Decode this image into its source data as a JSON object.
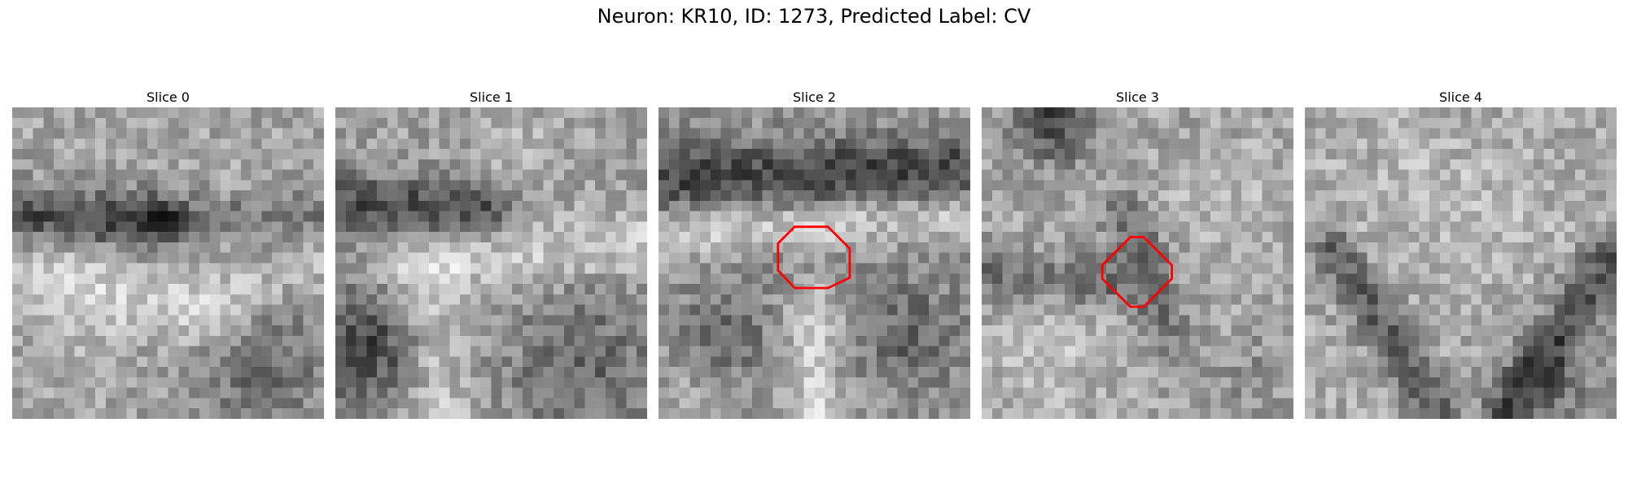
{
  "figure": {
    "title": "Neuron: KR10, ID: 1273, Predicted Label: CV"
  },
  "panels": [
    {
      "title": "Slice 0",
      "roi": false
    },
    {
      "title": "Slice 1",
      "roi": false
    },
    {
      "title": "Slice 2",
      "roi": true
    },
    {
      "title": "Slice 3",
      "roi": true
    },
    {
      "title": "Slice 4",
      "roi": false
    }
  ],
  "colors": {
    "roi_outline": "#ff0000",
    "colormap": "gray"
  }
}
